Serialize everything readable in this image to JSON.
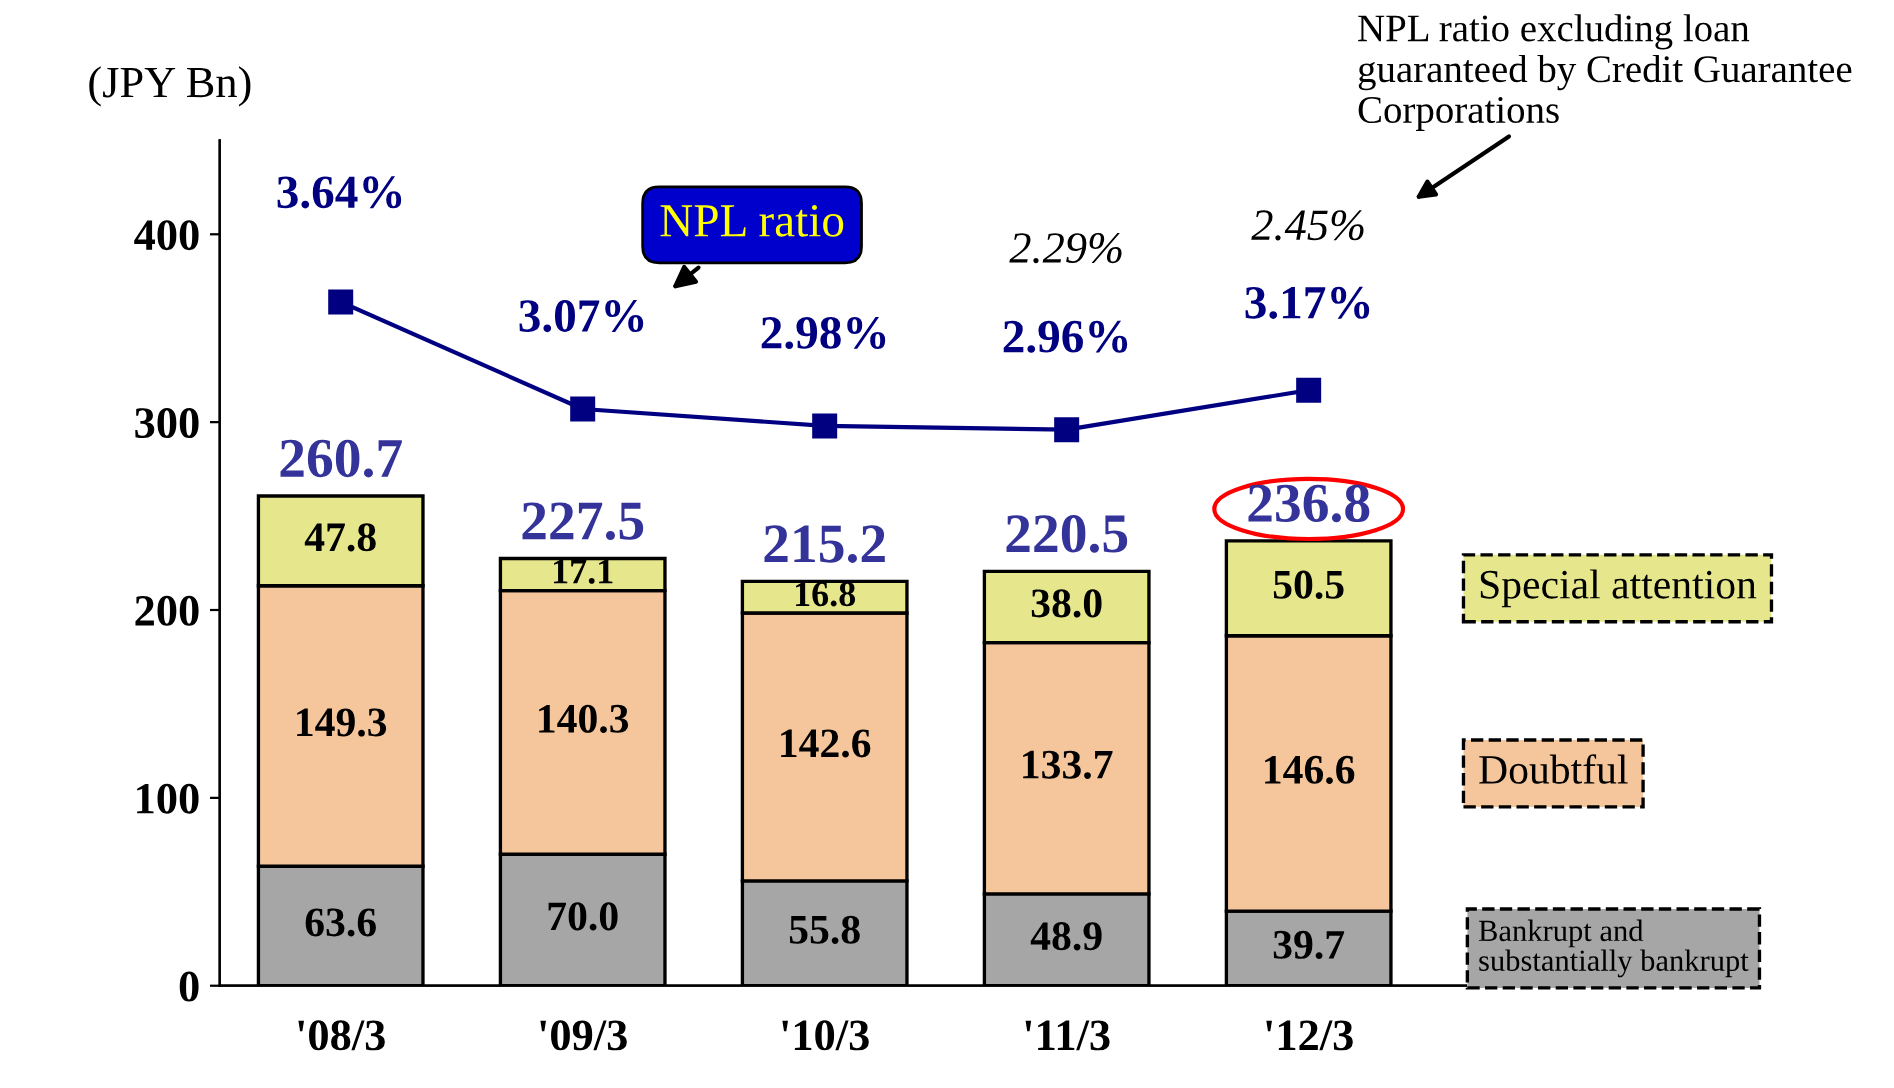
{
  "chart_data": {
    "type": "bar",
    "stacked": true,
    "ylabel": "(JPY Bn)",
    "categories": [
      "'08/3",
      "'09/3",
      "'10/3",
      "'11/3",
      "'12/3"
    ],
    "series": [
      {
        "name": "Bankrupt and substantially bankrupt",
        "color": "#a6a6a6",
        "values": [
          63.6,
          70.0,
          55.8,
          48.9,
          39.7
        ],
        "value_labels": [
          "63.6",
          "70.0",
          "55.8",
          "48.9",
          "39.7"
        ]
      },
      {
        "name": "Doubtful",
        "color": "#f5c69b",
        "values": [
          149.3,
          140.3,
          142.6,
          133.7,
          146.6
        ],
        "value_labels": [
          "149.3",
          "140.3",
          "142.6",
          "133.7",
          "146.6"
        ]
      },
      {
        "name": "Special attention",
        "color": "#e6e68c",
        "values": [
          47.8,
          17.1,
          16.8,
          38.0,
          50.5
        ],
        "value_labels": [
          "47.8",
          "17.1",
          "16.8",
          "38.0",
          "50.5"
        ]
      },
      {
        "name": "NPL ratio",
        "type": "line",
        "axis": "y2",
        "color": "#000080",
        "marker": "square",
        "value_labels": [
          "3.64%",
          "3.07%",
          "2.98%",
          "2.96%",
          "3.17%"
        ],
        "values": [
          3.64,
          3.07,
          2.98,
          2.96,
          3.17
        ]
      }
    ],
    "data_labels": true,
    "totals": [
      "260.7",
      "227.5",
      "215.2",
      "220.5",
      "236.8"
    ],
    "ylim": [
      0,
      450
    ],
    "yticks": [
      0,
      100,
      200,
      300,
      400
    ],
    "y2lim": [
      0,
      4.5
    ],
    "grid": false,
    "legend": "right",
    "annotations": [
      "2.29%",
      "2.45%",
      "NPL ratio excluding loan guaranteed by Credit Guarantee Corporations"
    ]
  }
}
